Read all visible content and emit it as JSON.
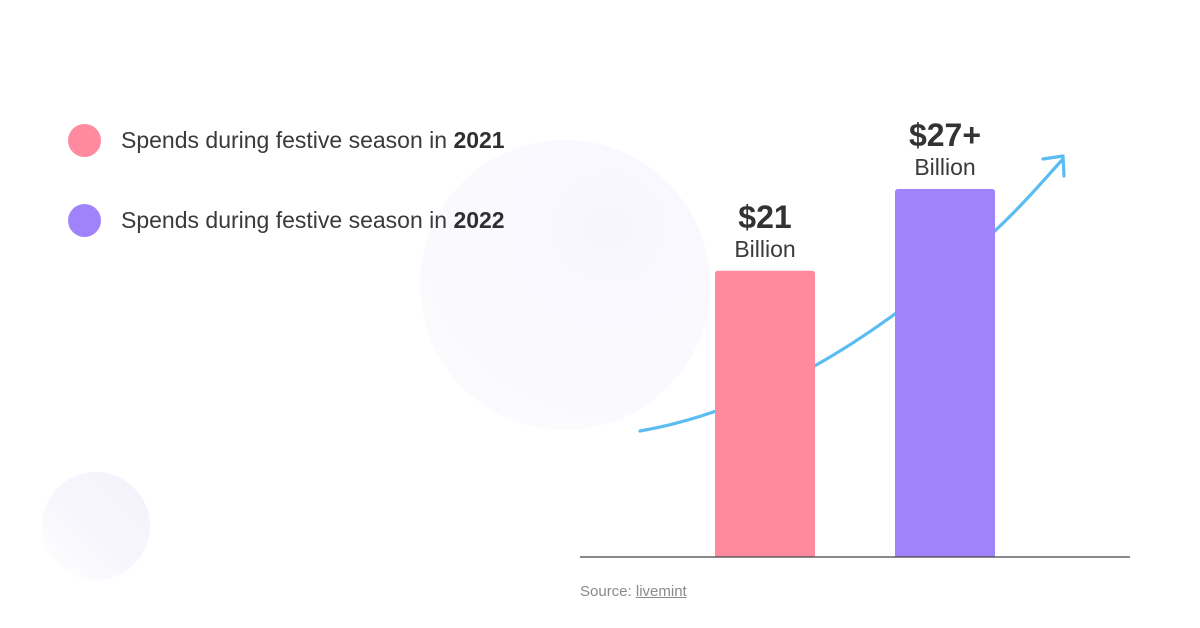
{
  "legend": {
    "items": [
      {
        "prefix": "Spends during festive season in ",
        "year": "2021",
        "color": "#ff8aa0"
      },
      {
        "prefix": "Spends during festive season in ",
        "year": "2022",
        "color": "#a083fa"
      }
    ]
  },
  "chart_data": {
    "type": "bar",
    "categories": [
      "2021",
      "2022"
    ],
    "values": [
      21,
      27
    ],
    "value_labels": [
      "$21",
      "$27+"
    ],
    "unit_labels": [
      "Billion",
      "Billion"
    ],
    "colors": [
      "#ff8aa0",
      "#a083fa"
    ],
    "trend_arrow_color": "#5bbcf2",
    "axis_color": "#444444",
    "ylim": [
      0,
      27
    ],
    "grid": false,
    "legend_placement": "top-left"
  },
  "source": {
    "label": "Source:",
    "link_text": "livemint"
  }
}
